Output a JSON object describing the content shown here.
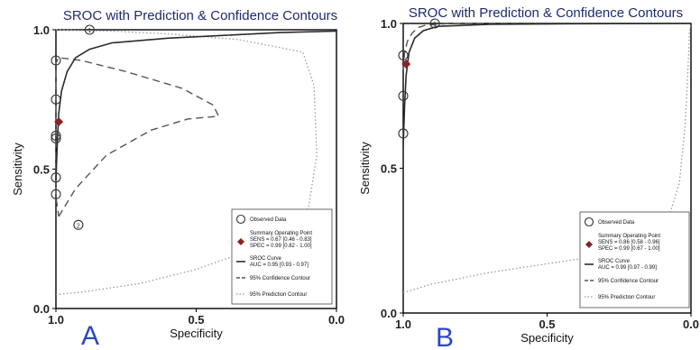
{
  "chart_data": [
    {
      "panel_letter": "A",
      "type": "scatter",
      "title": "SROC with Prediction & Confidence Contours",
      "xlabel": "Specificity",
      "ylabel": "Sensitivity",
      "x_reversed": true,
      "xlim": [
        1.0,
        0.0
      ],
      "ylim": [
        0.0,
        1.0
      ],
      "x_ticks": [
        {
          "v": 1.0,
          "label": "1.0"
        },
        {
          "v": 0.5,
          "label": "0.5"
        },
        {
          "v": 0.0,
          "label": "0.0"
        }
      ],
      "y_ticks": [
        {
          "v": 0.0,
          "label": "0.0"
        },
        {
          "v": 0.5,
          "label": "0.5"
        },
        {
          "v": 1.0,
          "label": "1.0"
        }
      ],
      "observed": [
        {
          "spec": 0.88,
          "sens": 1.0,
          "label": "1"
        },
        {
          "spec": 1.0,
          "sens": 0.89
        },
        {
          "spec": 1.0,
          "sens": 0.75
        },
        {
          "spec": 1.0,
          "sens": 0.62
        },
        {
          "spec": 1.0,
          "sens": 0.61
        },
        {
          "spec": 1.0,
          "sens": 0.47
        },
        {
          "spec": 1.0,
          "sens": 0.41
        },
        {
          "spec": 0.92,
          "sens": 0.3,
          "label": "2"
        }
      ],
      "summary_point": {
        "spec": 0.99,
        "sens": 0.67
      },
      "sroc_curve": [
        [
          1.0,
          0.46
        ],
        [
          0.995,
          0.6
        ],
        [
          0.99,
          0.7
        ],
        [
          0.98,
          0.78
        ],
        [
          0.96,
          0.85
        ],
        [
          0.93,
          0.9
        ],
        [
          0.88,
          0.93
        ],
        [
          0.8,
          0.953
        ],
        [
          0.6,
          0.97
        ],
        [
          0.4,
          0.98
        ],
        [
          0.2,
          0.99
        ],
        [
          0.0,
          0.995
        ]
      ],
      "confidence_contour": [
        [
          0.99,
          0.33
        ],
        [
          0.93,
          0.43
        ],
        [
          0.82,
          0.55
        ],
        [
          0.66,
          0.64
        ],
        [
          0.53,
          0.68
        ],
        [
          0.42,
          0.69
        ],
        [
          0.44,
          0.73
        ],
        [
          0.55,
          0.79
        ],
        [
          0.75,
          0.85
        ],
        [
          0.91,
          0.89
        ],
        [
          0.99,
          0.9
        ],
        [
          1.0,
          0.88
        ],
        [
          1.0,
          0.4
        ],
        [
          0.99,
          0.33
        ]
      ],
      "prediction_contour": [
        [
          1.0,
          0.05
        ],
        [
          0.9,
          0.06
        ],
        [
          0.7,
          0.09
        ],
        [
          0.5,
          0.14
        ],
        [
          0.25,
          0.23
        ],
        [
          0.1,
          0.36
        ],
        [
          0.07,
          0.55
        ],
        [
          0.08,
          0.8
        ],
        [
          0.12,
          0.92
        ],
        [
          0.35,
          0.965
        ],
        [
          0.6,
          0.985
        ],
        [
          0.8,
          0.995
        ],
        [
          1.0,
          1.0
        ]
      ],
      "legend": {
        "position": "bottom-right",
        "observed": "Observed Data",
        "summary_label": "Summary Operating Point",
        "summary_sens": "SENS = 0.67 [0.46 - 0.83]",
        "summary_spec": "SPEC = 0.99 [0.82 - 1.00]",
        "sroc_label": "SROC Curve",
        "sroc_auc": "AUC = 0.95 [0.93 - 0.97]",
        "confidence": "95% Confidence Contour",
        "prediction": "95% Prediction Contour"
      }
    },
    {
      "panel_letter": "B",
      "type": "scatter",
      "title": "SROC with Prediction & Confidence Contours",
      "xlabel": "Specificity",
      "ylabel": "Sensitivity",
      "x_reversed": true,
      "xlim": [
        1.0,
        0.0
      ],
      "ylim": [
        0.0,
        1.0
      ],
      "x_ticks": [
        {
          "v": 1.0,
          "label": "1.0"
        },
        {
          "v": 0.5,
          "label": "0.5"
        },
        {
          "v": 0.0,
          "label": "0.0"
        }
      ],
      "y_ticks": [
        {
          "v": 0.0,
          "label": "0.0"
        },
        {
          "v": 0.5,
          "label": "0.5"
        },
        {
          "v": 1.0,
          "label": "1.0"
        }
      ],
      "observed": [
        {
          "spec": 0.89,
          "sens": 1.0,
          "label": "1"
        },
        {
          "spec": 1.0,
          "sens": 0.89
        },
        {
          "spec": 1.0,
          "sens": 0.75
        },
        {
          "spec": 1.0,
          "sens": 0.62
        }
      ],
      "summary_point": {
        "spec": 0.99,
        "sens": 0.86
      },
      "sroc_curve": [
        [
          1.0,
          0.58
        ],
        [
          0.995,
          0.72
        ],
        [
          0.99,
          0.82
        ],
        [
          0.98,
          0.9
        ],
        [
          0.96,
          0.95
        ],
        [
          0.93,
          0.975
        ],
        [
          0.88,
          0.99
        ],
        [
          0.7,
          0.997
        ],
        [
          0.4,
          0.999
        ],
        [
          0.0,
          1.0
        ]
      ],
      "confidence_contour": [
        [
          1.0,
          0.84
        ],
        [
          0.995,
          0.9
        ],
        [
          0.985,
          0.94
        ],
        [
          0.97,
          0.965
        ],
        [
          0.95,
          0.985
        ],
        [
          0.92,
          0.995
        ],
        [
          0.85,
          0.999
        ],
        [
          0.7,
          1.0
        ],
        [
          0.5,
          1.0
        ]
      ],
      "prediction_contour": [
        [
          1.0,
          0.07
        ],
        [
          0.9,
          0.1
        ],
        [
          0.7,
          0.14
        ],
        [
          0.5,
          0.17
        ],
        [
          0.3,
          0.2
        ],
        [
          0.15,
          0.24
        ],
        [
          0.08,
          0.32
        ],
        [
          0.04,
          0.45
        ],
        [
          0.02,
          0.65
        ],
        [
          0.01,
          0.85
        ],
        [
          0.005,
          0.97
        ],
        [
          0.0,
          1.0
        ]
      ],
      "legend": {
        "position": "bottom-right",
        "observed": "Observed Data",
        "summary_label": "Summary Operating Point",
        "summary_sens": "SENS = 0.86 [0.58 - 0.96]",
        "summary_spec": "SPEC = 0.99 [0.67 - 1.00]",
        "sroc_label": "SROC Curve",
        "sroc_auc": "AUC = 0.99 [0.97 - 0.99]",
        "confidence": "95% Confidence Contour",
        "prediction": "95% Prediction Contour"
      }
    }
  ],
  "colors": {
    "title": "#1f2a6e",
    "panel_letter": "#2a46c8",
    "summary_marker": "#8b2323",
    "curve": "#2b2b2b",
    "contour": "#555555",
    "prediction": "#999999",
    "frame": "#000000"
  }
}
